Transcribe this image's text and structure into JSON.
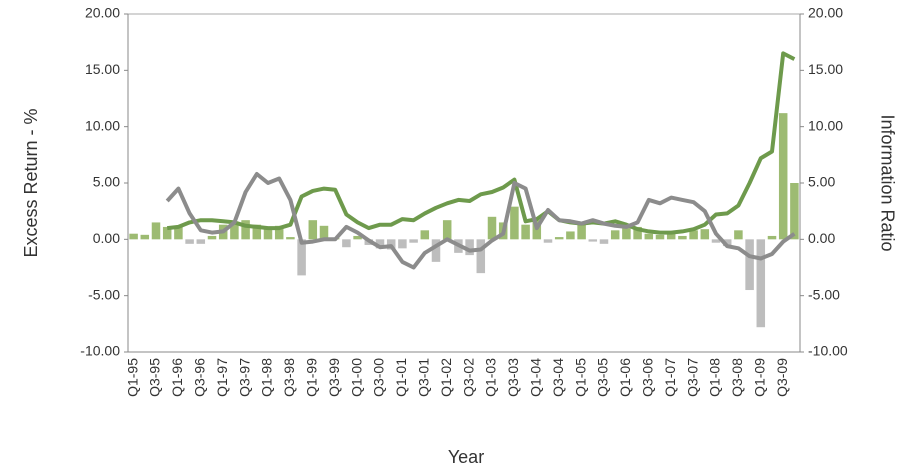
{
  "chart_data": {
    "type": "bar",
    "x_label": "Year",
    "y_label": "Excess Return - %",
    "y2_label": "Information Ratio",
    "categories": [
      "Q1-95",
      null,
      "Q3-95",
      null,
      "Q1-96",
      null,
      "Q3-96",
      null,
      "Q1-97",
      null,
      "Q3-97",
      null,
      "Q1-98",
      null,
      "Q3-98",
      null,
      "Q1-99",
      null,
      "Q3-99",
      null,
      "Q1-00",
      null,
      "Q3-00",
      null,
      "Q1-01",
      null,
      "Q3-01",
      null,
      "Q1-02",
      null,
      "Q3-02",
      null,
      "Q1-03",
      null,
      "Q3-03",
      null,
      "Q1-04",
      null,
      "Q3-04",
      null,
      "Q1-05",
      null,
      "Q3-05",
      null,
      "Q1-06",
      null,
      "Q3-06",
      null,
      "Q1-07",
      null,
      "Q3-07",
      null,
      "Q1-08",
      null,
      "Q3-08",
      null,
      "Q1-09",
      null,
      "Q3-09",
      null
    ],
    "series": [
      {
        "type": "bar",
        "color": "#9dbb72",
        "negative_color": "#bdbdbd",
        "values": [
          0.5,
          0.4,
          1.5,
          1.1,
          1.2,
          -0.4,
          -0.4,
          0.3,
          1.3,
          1.5,
          1.7,
          1.3,
          1.1,
          1.2,
          0.2,
          -3.2,
          1.7,
          1.2,
          0.1,
          -0.7,
          0.3,
          -0.5,
          -0.8,
          -0.9,
          -0.8,
          -0.3,
          0.8,
          -2.0,
          1.7,
          -1.2,
          -1.4,
          -3.0,
          2.0,
          1.5,
          2.9,
          1.3,
          1.7,
          -0.3,
          0.2,
          0.7,
          1.5,
          -0.2,
          -0.4,
          0.8,
          1.0,
          1.1,
          0.5,
          0.4,
          0.5,
          0.3,
          0.8,
          0.9,
          -0.3,
          -0.6,
          0.8,
          -4.5,
          -7.8,
          0.3,
          11.2,
          5.0
        ]
      },
      {
        "type": "line",
        "axis": "y2",
        "color": "#6e9a4c",
        "values": [
          null,
          null,
          null,
          1.0,
          1.1,
          1.5,
          1.7,
          1.7,
          1.6,
          1.5,
          1.2,
          1.1,
          1.0,
          1.0,
          1.3,
          3.8,
          4.3,
          4.5,
          4.4,
          2.2,
          1.5,
          1.0,
          1.3,
          1.3,
          1.8,
          1.7,
          2.3,
          2.8,
          3.2,
          3.5,
          3.4,
          4.0,
          4.2,
          4.6,
          5.3,
          1.6,
          1.8,
          2.5,
          1.7,
          1.5,
          1.4,
          1.5,
          1.4,
          1.6,
          1.3,
          0.9,
          0.7,
          0.6,
          0.6,
          0.7,
          0.9,
          1.3,
          2.2,
          2.3,
          3.0,
          5.0,
          7.2,
          7.8,
          16.5,
          16.0
        ]
      },
      {
        "type": "line",
        "axis": "y2",
        "color": "#8c8c8c",
        "values": [
          null,
          null,
          null,
          3.4,
          4.5,
          2.3,
          0.8,
          0.6,
          0.7,
          1.5,
          4.2,
          5.8,
          5.0,
          5.4,
          3.5,
          -0.3,
          -0.2,
          0.0,
          0.0,
          1.1,
          0.6,
          -0.1,
          -0.7,
          -0.6,
          -2.0,
          -2.5,
          -1.2,
          -0.6,
          0.0,
          -0.5,
          -1.0,
          -0.9,
          -0.1,
          0.5,
          5.0,
          4.5,
          1.0,
          2.6,
          1.7,
          1.6,
          1.4,
          1.7,
          1.4,
          1.2,
          1.1,
          1.5,
          3.5,
          3.2,
          3.7,
          3.5,
          3.3,
          2.5,
          0.5,
          -0.6,
          -0.8,
          -1.5,
          -1.7,
          -1.3,
          -0.2,
          0.5
        ]
      }
    ],
    "ylim": [
      -10,
      20
    ],
    "yticks": [
      {
        "value": -10,
        "label": "-10.00"
      },
      {
        "value": -5,
        "label": "-5.00"
      },
      {
        "value": 0,
        "label": "0.00"
      },
      {
        "value": 5,
        "label": "5.00"
      },
      {
        "value": 10,
        "label": "10.00"
      },
      {
        "value": 15,
        "label": "15.00"
      },
      {
        "value": 20,
        "label": "20.00"
      }
    ],
    "y2lim": [
      -10,
      20
    ],
    "y2ticks": [
      {
        "value": -10,
        "label": "-10.00"
      },
      {
        "value": -5,
        "label": "-5.00"
      },
      {
        "value": 0,
        "label": "0.00"
      },
      {
        "value": 5,
        "label": "5.00"
      },
      {
        "value": 10,
        "label": "10.00"
      },
      {
        "value": 15,
        "label": "15.00"
      },
      {
        "value": 20,
        "label": "20.00"
      }
    ]
  }
}
